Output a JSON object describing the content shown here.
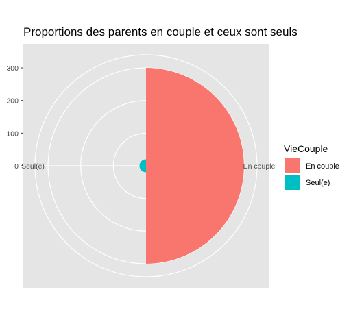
{
  "chart_data": {
    "type": "bar",
    "coord": "polar",
    "title": "Proportions des parents en couple et ceux sont seuls",
    "categories": [
      "En couple",
      "Seul(e)"
    ],
    "values": [
      300,
      20
    ],
    "y_ticks": [
      0,
      100,
      200,
      300
    ],
    "ylim": [
      0,
      340
    ],
    "grid": true,
    "legend": {
      "title": "VieCouple",
      "position": "right",
      "entries": [
        {
          "label": "En couple",
          "color": "#F8766D"
        },
        {
          "label": "Seul(e)",
          "color": "#00BFC4"
        }
      ]
    },
    "colors": {
      "panel": "#E5E5E5",
      "grid": "#FFFFFF"
    }
  }
}
